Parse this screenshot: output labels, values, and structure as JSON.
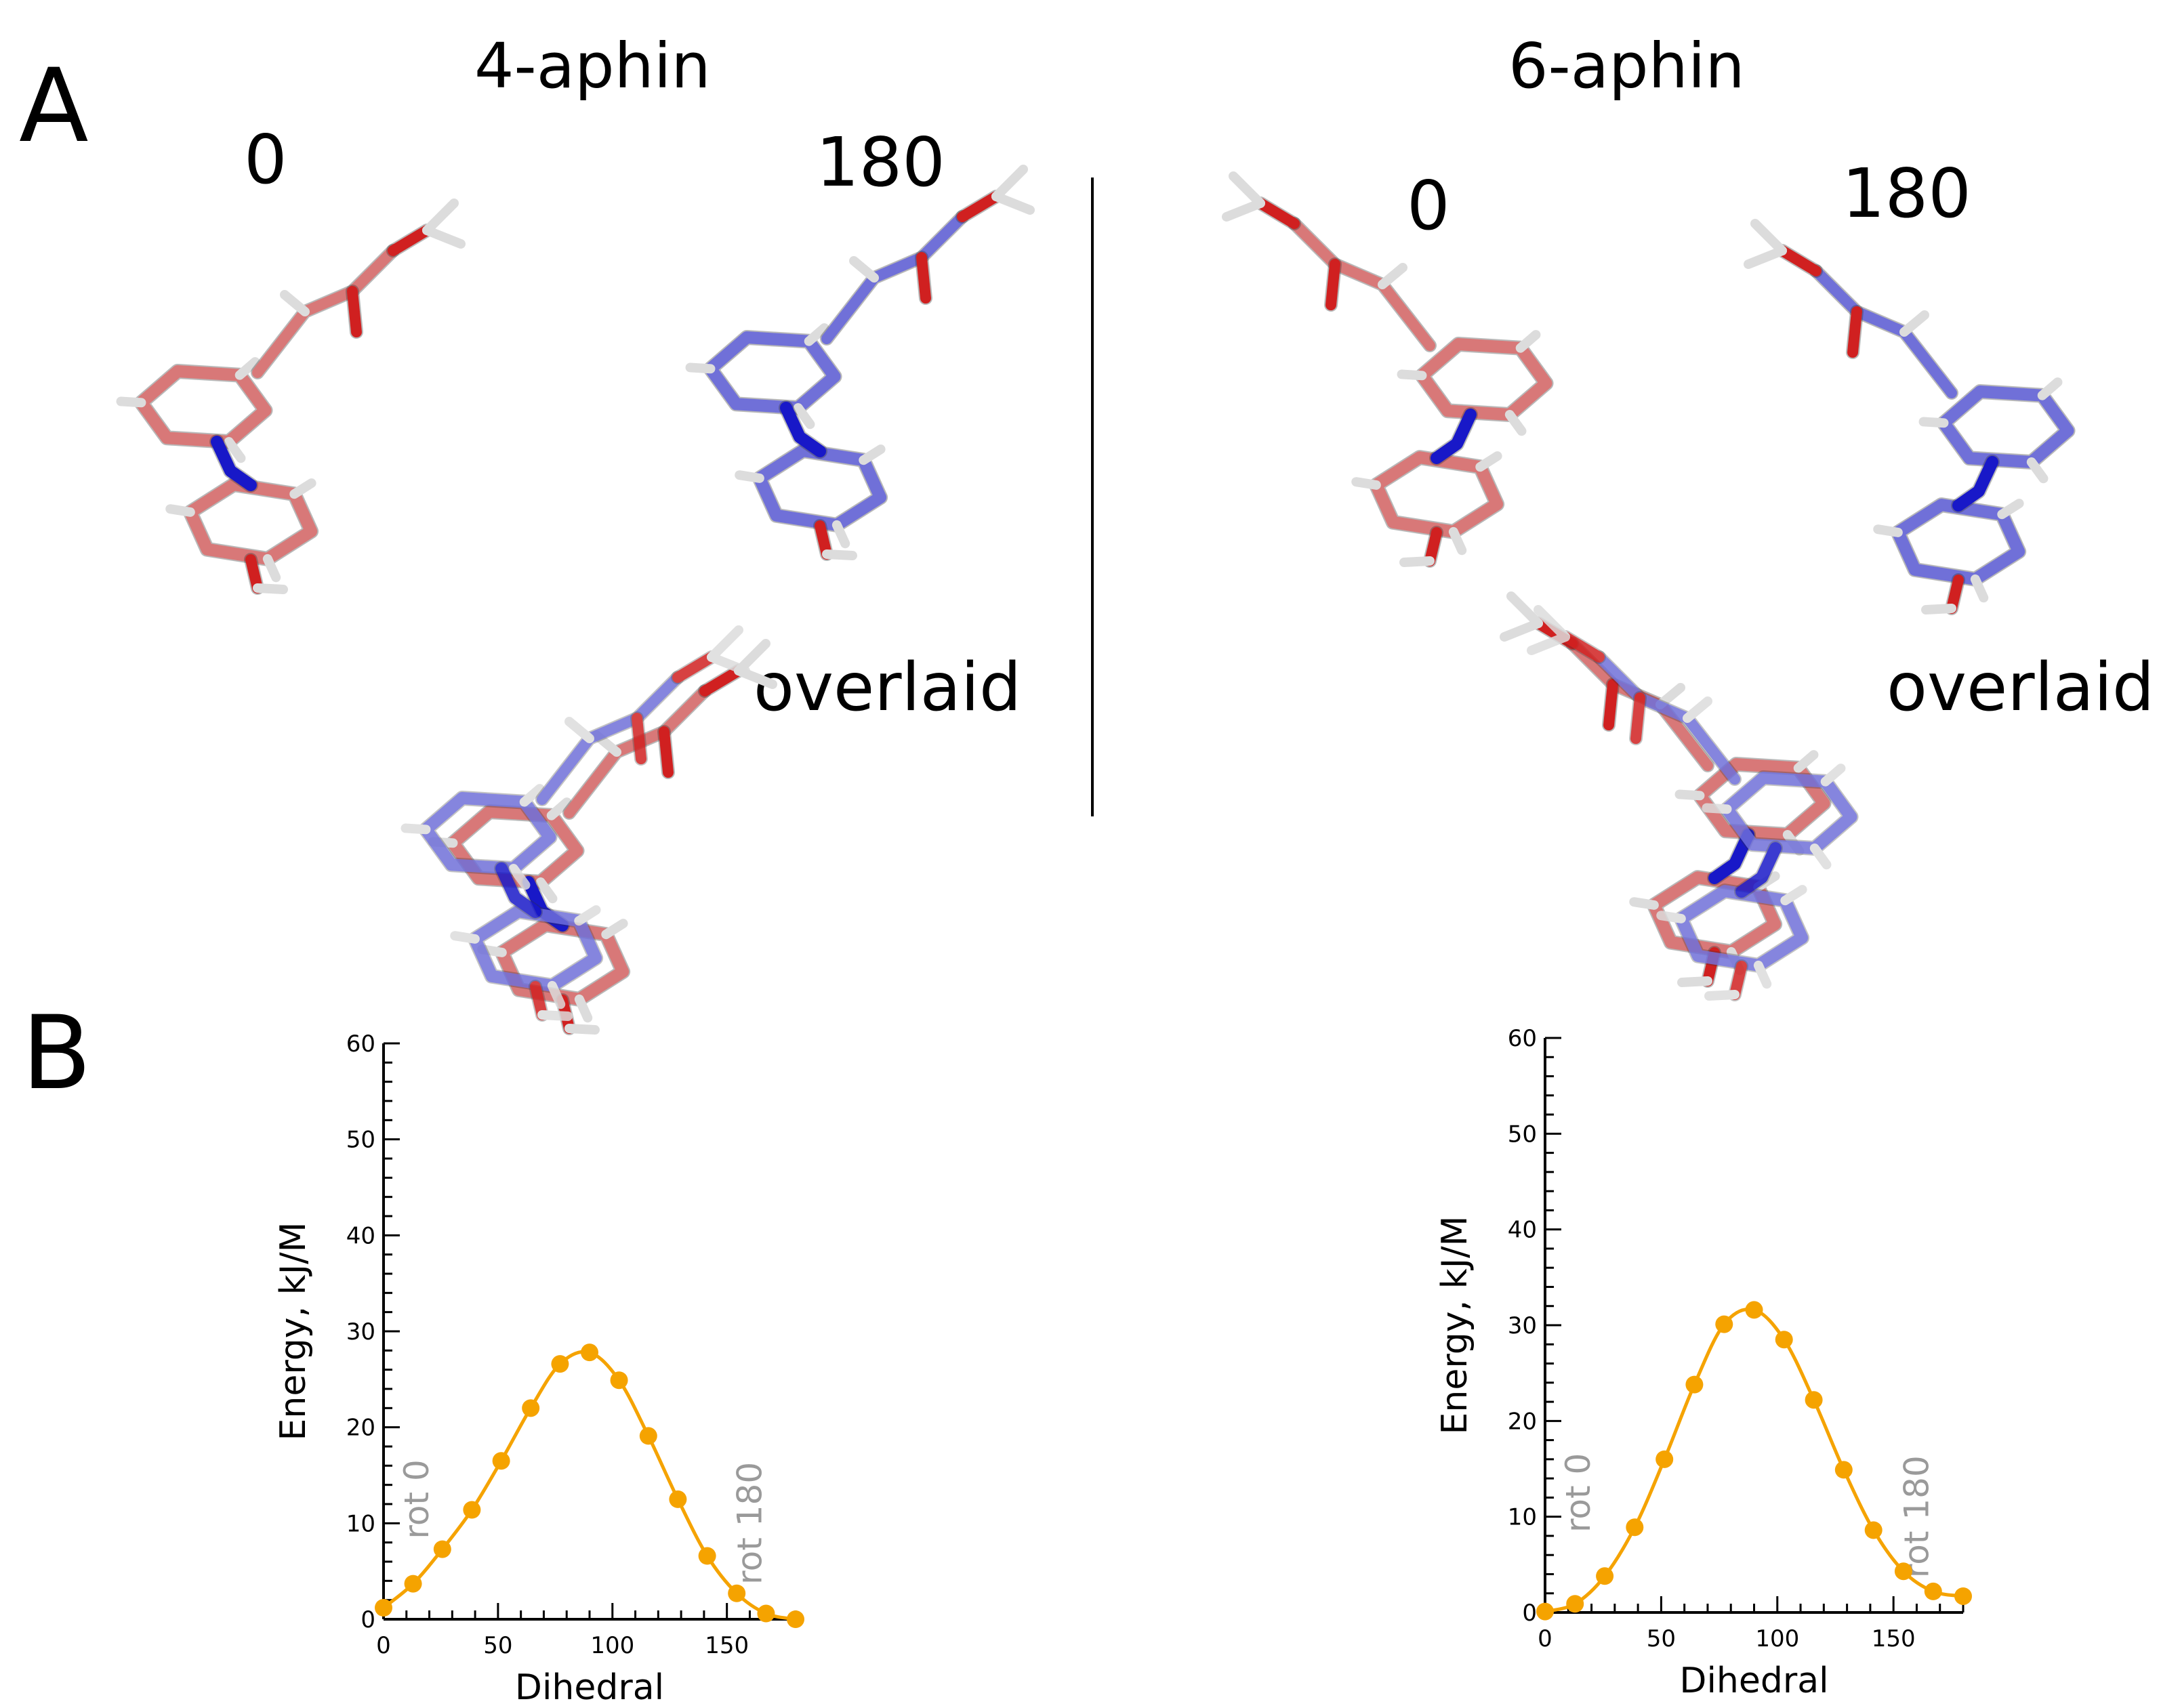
{
  "panels": {
    "a": "A",
    "b": "B"
  },
  "molecules": {
    "left": {
      "title": "4-aphin",
      "rot0": "0",
      "rot180": "180",
      "overlaid": "overlaid"
    },
    "right": {
      "title": "6-aphin",
      "rot0": "0",
      "rot180": "180",
      "overlaid": "overlaid"
    }
  },
  "colors": {
    "pink": "#d87878",
    "blue": "#7070d8",
    "oxygen": "#d02020",
    "nitrogen": "#1818c8",
    "hydrogen": "#dcdcdc",
    "curve": "#f5a300",
    "annotation": "#9a9a9a"
  },
  "chart_data": [
    {
      "type": "line",
      "title": "",
      "xlabel": "Dihedral",
      "ylabel": "Energy, kJ/M",
      "xlim": [
        0,
        180
      ],
      "ylim": [
        0,
        60
      ],
      "xticks": [
        0,
        50,
        100,
        150
      ],
      "yticks": [
        0,
        10,
        20,
        30,
        40,
        50,
        60
      ],
      "annotations": [
        "rot 0",
        "rot 180"
      ],
      "series": [
        {
          "name": "4-aphin",
          "x": [
            0,
            12.9,
            25.7,
            38.6,
            51.4,
            64.3,
            77.1,
            90,
            102.9,
            115.7,
            128.6,
            141.4,
            154.3,
            167.1,
            180
          ],
          "y": [
            1.2,
            3.7,
            7.3,
            11.4,
            16.5,
            22.0,
            26.6,
            27.8,
            24.9,
            19.1,
            12.5,
            6.6,
            2.7,
            0.6,
            0
          ]
        }
      ]
    },
    {
      "type": "line",
      "title": "",
      "xlabel": "Dihedral",
      "ylabel": "Energy, kJ/M",
      "xlim": [
        0,
        180
      ],
      "ylim": [
        0,
        60
      ],
      "xticks": [
        0,
        50,
        100,
        150
      ],
      "yticks": [
        0,
        10,
        20,
        30,
        40,
        50,
        60
      ],
      "annotations": [
        "rot 0",
        "rot 180"
      ],
      "series": [
        {
          "name": "6-aphin",
          "x": [
            0,
            12.9,
            25.7,
            38.6,
            51.4,
            64.3,
            77.1,
            90,
            102.9,
            115.7,
            128.6,
            141.4,
            154.3,
            167.1,
            180
          ],
          "y": [
            0.1,
            0.9,
            3.8,
            8.9,
            16.0,
            23.8,
            30.1,
            31.6,
            28.5,
            22.2,
            14.9,
            8.6,
            4.3,
            2.2,
            1.7
          ]
        }
      ]
    }
  ]
}
